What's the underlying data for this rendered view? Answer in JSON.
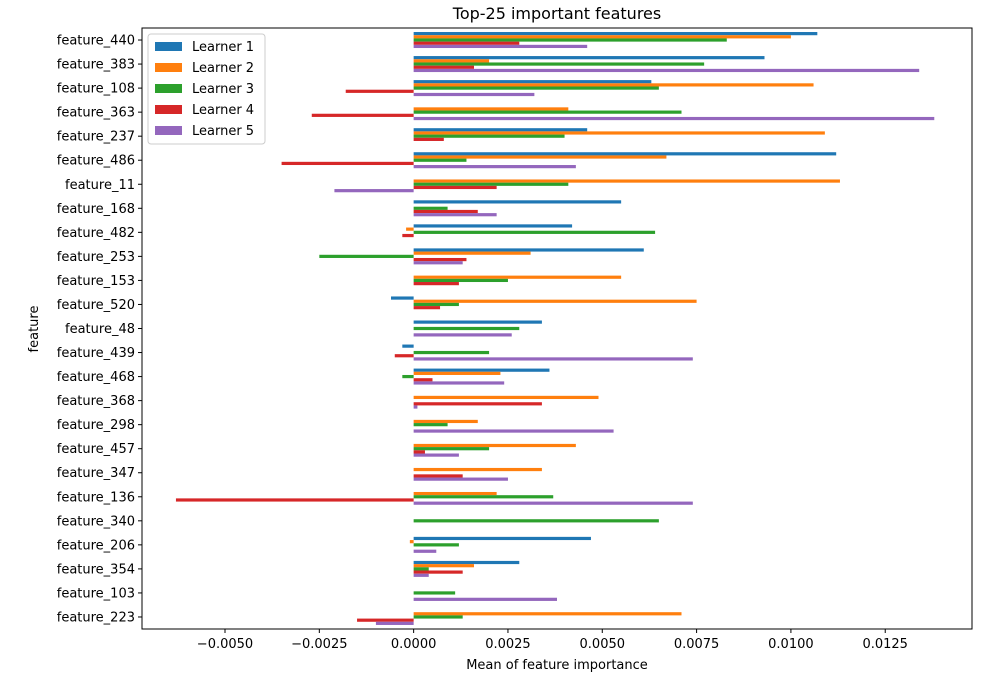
{
  "chart_data": {
    "type": "bar",
    "orientation": "horizontal",
    "title": "Top-25 important features",
    "xlabel": "Mean of feature importance",
    "ylabel": "feature",
    "xlim": [
      -0.0072,
      0.0148
    ],
    "xticks": [
      -0.005,
      -0.0025,
      0.0,
      0.0025,
      0.005,
      0.0075,
      0.01,
      0.0125
    ],
    "xtick_labels": [
      "−0.0050",
      "−0.0025",
      "0.0000",
      "0.0025",
      "0.0050",
      "0.0075",
      "0.0100",
      "0.0125"
    ],
    "grid": false,
    "legend_position": "top-left",
    "categories": [
      "feature_440",
      "feature_383",
      "feature_108",
      "feature_363",
      "feature_237",
      "feature_486",
      "feature_11",
      "feature_168",
      "feature_482",
      "feature_253",
      "feature_153",
      "feature_520",
      "feature_48",
      "feature_439",
      "feature_468",
      "feature_368",
      "feature_298",
      "feature_457",
      "feature_347",
      "feature_136",
      "feature_340",
      "feature_206",
      "feature_354",
      "feature_103",
      "feature_223"
    ],
    "series": [
      {
        "name": "Learner 1",
        "color": "#1f77b4",
        "values": [
          0.0107,
          0.0093,
          0.0063,
          0.0,
          0.0046,
          0.0112,
          0.0,
          0.0055,
          0.0042,
          0.0061,
          0.0,
          -0.0006,
          0.0034,
          -0.0003,
          0.0036,
          0.0,
          0.0,
          0.0,
          0.0,
          0.0,
          0.0,
          0.0047,
          0.0028,
          0.0,
          0.0
        ]
      },
      {
        "name": "Learner 2",
        "color": "#ff7f0e",
        "values": [
          0.01,
          0.002,
          0.0106,
          0.0041,
          0.0109,
          0.0067,
          0.0113,
          0.0,
          -0.0002,
          0.0031,
          0.0055,
          0.0075,
          0.0,
          0.0,
          0.0023,
          0.0049,
          0.0017,
          0.0043,
          0.0034,
          0.0022,
          0.0,
          -0.0001,
          0.0016,
          0.0,
          0.0071
        ]
      },
      {
        "name": "Learner 3",
        "color": "#2ca02c",
        "values": [
          0.0083,
          0.0077,
          0.0065,
          0.0071,
          0.004,
          0.0014,
          0.0041,
          0.0009,
          0.0064,
          -0.0025,
          0.0025,
          0.0012,
          0.0028,
          0.002,
          -0.0003,
          0.0,
          0.0009,
          0.002,
          0.0,
          0.0037,
          0.0065,
          0.0012,
          0.0004,
          0.0011,
          0.0013
        ]
      },
      {
        "name": "Learner 4",
        "color": "#d62728",
        "values": [
          0.0028,
          0.0016,
          -0.0018,
          -0.0027,
          0.0008,
          -0.0035,
          0.0022,
          0.0017,
          -0.0003,
          0.0014,
          0.0012,
          0.0007,
          0.0,
          -0.0005,
          0.0005,
          0.0034,
          0.0,
          0.0003,
          0.0013,
          -0.0063,
          0.0,
          0.0,
          0.0013,
          0.0,
          -0.0015
        ]
      },
      {
        "name": "Learner 5",
        "color": "#9467bd",
        "values": [
          0.0046,
          0.0134,
          0.0032,
          0.0138,
          0.0,
          0.0043,
          -0.0021,
          0.0022,
          0.0,
          0.0013,
          0.0,
          0.0,
          0.0026,
          0.0074,
          0.0024,
          0.0001,
          0.0053,
          0.0012,
          0.0025,
          0.0074,
          0.0,
          0.0006,
          0.0004,
          0.0038,
          -0.001
        ]
      }
    ]
  }
}
